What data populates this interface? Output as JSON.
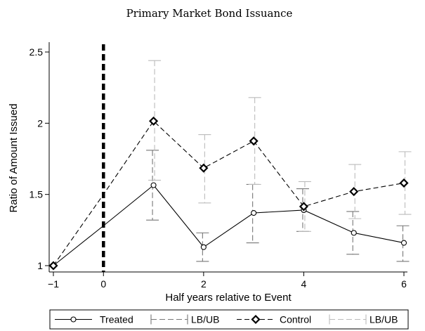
{
  "chart_data": {
    "type": "line",
    "title": "Primary Market Bond Issuance",
    "xlabel": "Half years relative to Event",
    "ylabel": "Ratio of Amount Issued",
    "xlim": [
      -1,
      6
    ],
    "ylim": [
      0.95,
      2.55
    ],
    "xticks": [
      -1,
      0,
      2,
      4,
      6
    ],
    "xtick_labels": [
      "−1",
      "0",
      "2",
      "4",
      "6"
    ],
    "yticks": [
      1,
      1.5,
      2,
      2.5
    ],
    "ytick_labels": [
      "1",
      "1.5",
      "2",
      "2.5"
    ],
    "event_x": 0,
    "grid": false,
    "legend_position": "bottom",
    "series": [
      {
        "name": "Treated",
        "marker": "circle",
        "linestyle": "solid",
        "color": "#000000",
        "x": [
          -1,
          0,
          1,
          2,
          3,
          4,
          5,
          6
        ],
        "y": [
          1.0,
          1.28,
          1.565,
          1.13,
          1.37,
          1.39,
          1.23,
          1.16
        ]
      },
      {
        "name": "Control",
        "marker": "diamond",
        "linestyle": "dashed",
        "color": "#000000",
        "x": [
          -1,
          0,
          1,
          2,
          3,
          4,
          5,
          6
        ],
        "y": [
          1.0,
          1.5,
          2.015,
          1.685,
          1.875,
          1.415,
          1.52,
          1.58
        ]
      }
    ],
    "error_bars": [
      {
        "name": "LB/UB",
        "for_series": "Treated",
        "color": "#777777",
        "linestyle": "long-dash",
        "x": [
          1,
          2,
          3,
          4,
          5,
          6
        ],
        "low": [
          1.32,
          1.03,
          1.16,
          1.24,
          1.08,
          1.03
        ],
        "high": [
          1.81,
          1.23,
          1.57,
          1.54,
          1.38,
          1.28
        ]
      },
      {
        "name": "LB/UB",
        "for_series": "Control",
        "color": "#bbbbbb",
        "linestyle": "long-dash",
        "x": [
          1,
          2,
          3,
          4,
          5,
          6
        ],
        "low": [
          1.6,
          1.44,
          1.57,
          1.24,
          1.33,
          1.36
        ],
        "high": [
          2.44,
          1.92,
          2.18,
          1.59,
          1.71,
          1.8
        ]
      }
    ]
  }
}
